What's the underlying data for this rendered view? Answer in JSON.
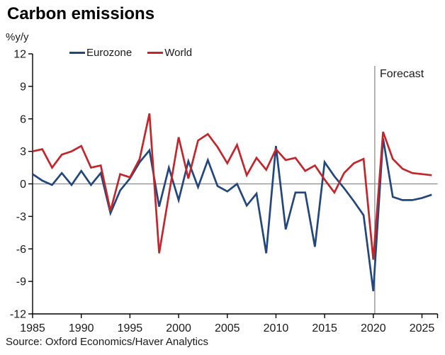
{
  "title": "Carbon emissions",
  "unit_label": "%y/y",
  "forecast_label": "Forecast",
  "source": "Source: Oxford Economics/Haver Analytics",
  "legend": {
    "items": [
      {
        "label": "Eurozone",
        "color": "#23477B"
      },
      {
        "label": "World",
        "color": "#C0272D"
      }
    ]
  },
  "chart_data": {
    "type": "line",
    "title": "Carbon emissions",
    "ylabel": "%y/y",
    "x": [
      1985,
      1986,
      1987,
      1988,
      1989,
      1990,
      1991,
      1992,
      1993,
      1994,
      1995,
      1996,
      1997,
      1998,
      1999,
      2000,
      2001,
      2002,
      2003,
      2004,
      2005,
      2006,
      2007,
      2008,
      2009,
      2010,
      2011,
      2012,
      2013,
      2014,
      2015,
      2016,
      2017,
      2018,
      2019,
      2020,
      2021,
      2022,
      2023,
      2024,
      2025,
      2026
    ],
    "series": [
      {
        "name": "Eurozone",
        "color": "#23477B",
        "values": [
          0.9,
          0.3,
          -0.1,
          1.0,
          -0.1,
          1.2,
          -0.1,
          1.0,
          -2.7,
          -0.6,
          0.5,
          2.0,
          3.1,
          -2.1,
          1.5,
          -1.5,
          2.1,
          -0.3,
          2.2,
          -0.2,
          -0.7,
          0.0,
          -2.0,
          -0.9,
          -6.4,
          3.5,
          -4.2,
          -0.8,
          -0.8,
          -5.8,
          2.0,
          0.7,
          -0.4,
          -1.6,
          -2.9,
          -9.9,
          4.2,
          -1.2,
          -1.5,
          -1.5,
          -1.3,
          -1.0
        ]
      },
      {
        "name": "World",
        "color": "#C0272D",
        "values": [
          3.0,
          3.2,
          1.5,
          2.7,
          3.0,
          3.5,
          1.5,
          1.7,
          -2.5,
          0.9,
          0.6,
          2.3,
          6.5,
          -6.4,
          -1.0,
          4.3,
          0.5,
          4.0,
          4.6,
          3.4,
          1.9,
          3.6,
          0.8,
          2.4,
          1.3,
          3.2,
          2.2,
          2.4,
          1.2,
          1.7,
          0.4,
          -0.8,
          1.0,
          1.9,
          2.3,
          -7.0,
          4.8,
          2.3,
          1.4,
          1.0,
          0.9,
          0.8
        ]
      }
    ],
    "ylim": [
      -12,
      12
    ],
    "yticks": [
      -12,
      -9,
      -6,
      -3,
      0,
      3,
      6,
      9,
      12
    ],
    "xticks": [
      1985,
      1990,
      1995,
      2000,
      2005,
      2010,
      2015,
      2020,
      2025
    ],
    "xlim": [
      1985,
      2026.6
    ],
    "zero_line": true,
    "grid": false,
    "legend_position": "top",
    "forecast_line_x": 2020.15,
    "axis_color": "#000000",
    "guide_color": "#8c8c8c"
  }
}
